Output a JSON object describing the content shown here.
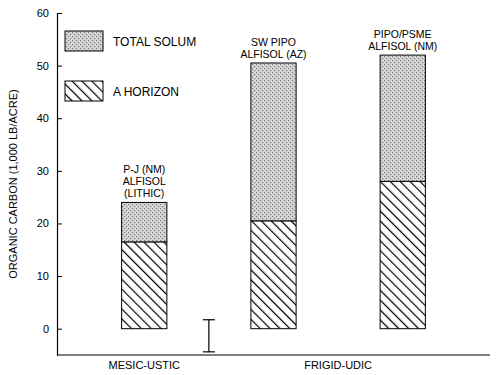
{
  "chart_data": {
    "type": "bar",
    "stacked": true,
    "y_label": "ORGANIC CARBON (1,000 LB/ACRE)",
    "categories": [
      "P-J (NM)\nALFISOL\n(LITHIC)",
      "SW PIPO\nALFISOL (AZ)",
      "PIPO/PSME\nALFISOL (NM)"
    ],
    "x_groups": [
      {
        "label": "MESIC-USTIC",
        "span": [
          0,
          0
        ]
      },
      {
        "label": "FRIGID-UDIC",
        "span": [
          1,
          2
        ]
      }
    ],
    "series": [
      {
        "name": "A HORIZON",
        "color": "#000000",
        "values": [
          16.5,
          20.5,
          28
        ]
      },
      {
        "name": "TOTAL SOLUM",
        "color": "#7a7a7a",
        "values": [
          7.5,
          30,
          24
        ]
      }
    ],
    "error_bar": [
      -4.4,
      1.7
    ],
    "ylim": [
      -5,
      60
    ],
    "yticks": [
      0,
      10,
      20,
      30,
      40,
      50,
      60
    ],
    "legend": "upper left",
    "grid": false
  }
}
